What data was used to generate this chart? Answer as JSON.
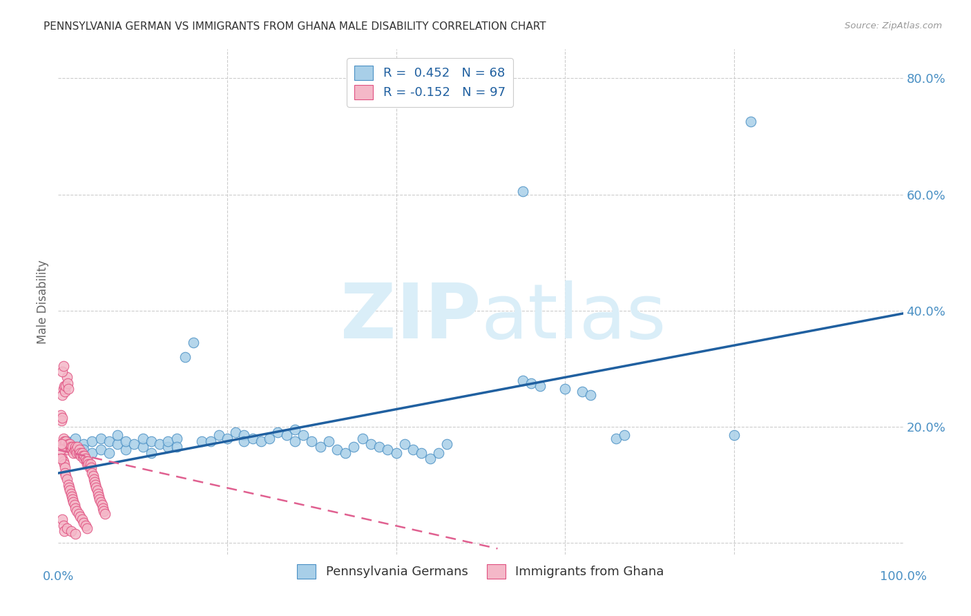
{
  "title": "PENNSYLVANIA GERMAN VS IMMIGRANTS FROM GHANA MALE DISABILITY CORRELATION CHART",
  "source": "Source: ZipAtlas.com",
  "ylabel": "Male Disability",
  "xlim": [
    0.0,
    1.0
  ],
  "ylim": [
    -0.02,
    0.85
  ],
  "y_ticks": [
    0.0,
    0.2,
    0.4,
    0.6,
    0.8
  ],
  "y_tick_labels": [
    "",
    "20.0%",
    "40.0%",
    "60.0%",
    "80.0%"
  ],
  "x_ticks": [
    0.0,
    0.2,
    0.4,
    0.6,
    0.8,
    1.0
  ],
  "legend1_label": "R =  0.452   N = 68",
  "legend2_label": "R = -0.152   N = 97",
  "legend_bottom_label1": "Pennsylvania Germans",
  "legend_bottom_label2": "Immigrants from Ghana",
  "blue_color": "#a8cfe8",
  "blue_edge_color": "#4a90c4",
  "pink_color": "#f4b8c8",
  "pink_edge_color": "#e05080",
  "blue_line_color": "#2060a0",
  "pink_line_color": "#e06090",
  "watermark_color": "#daeef8",
  "background_color": "#ffffff",
  "grid_color": "#cccccc",
  "title_color": "#333333",
  "right_label_color": "#4a90c4",
  "blue_scatter": [
    [
      0.01,
      0.175
    ],
    [
      0.02,
      0.165
    ],
    [
      0.02,
      0.18
    ],
    [
      0.03,
      0.17
    ],
    [
      0.03,
      0.16
    ],
    [
      0.04,
      0.155
    ],
    [
      0.04,
      0.175
    ],
    [
      0.05,
      0.16
    ],
    [
      0.05,
      0.18
    ],
    [
      0.06,
      0.155
    ],
    [
      0.06,
      0.175
    ],
    [
      0.07,
      0.17
    ],
    [
      0.07,
      0.185
    ],
    [
      0.08,
      0.16
    ],
    [
      0.08,
      0.175
    ],
    [
      0.09,
      0.17
    ],
    [
      0.1,
      0.165
    ],
    [
      0.1,
      0.18
    ],
    [
      0.11,
      0.175
    ],
    [
      0.11,
      0.155
    ],
    [
      0.12,
      0.17
    ],
    [
      0.13,
      0.165
    ],
    [
      0.13,
      0.175
    ],
    [
      0.14,
      0.18
    ],
    [
      0.14,
      0.165
    ],
    [
      0.15,
      0.32
    ],
    [
      0.16,
      0.345
    ],
    [
      0.17,
      0.175
    ],
    [
      0.18,
      0.175
    ],
    [
      0.19,
      0.185
    ],
    [
      0.2,
      0.18
    ],
    [
      0.21,
      0.19
    ],
    [
      0.22,
      0.185
    ],
    [
      0.22,
      0.175
    ],
    [
      0.23,
      0.18
    ],
    [
      0.24,
      0.175
    ],
    [
      0.25,
      0.18
    ],
    [
      0.26,
      0.19
    ],
    [
      0.27,
      0.185
    ],
    [
      0.28,
      0.175
    ],
    [
      0.28,
      0.195
    ],
    [
      0.29,
      0.185
    ],
    [
      0.3,
      0.175
    ],
    [
      0.31,
      0.165
    ],
    [
      0.32,
      0.175
    ],
    [
      0.33,
      0.16
    ],
    [
      0.34,
      0.155
    ],
    [
      0.35,
      0.165
    ],
    [
      0.36,
      0.18
    ],
    [
      0.37,
      0.17
    ],
    [
      0.38,
      0.165
    ],
    [
      0.39,
      0.16
    ],
    [
      0.4,
      0.155
    ],
    [
      0.41,
      0.17
    ],
    [
      0.42,
      0.16
    ],
    [
      0.43,
      0.155
    ],
    [
      0.44,
      0.145
    ],
    [
      0.45,
      0.155
    ],
    [
      0.46,
      0.17
    ],
    [
      0.55,
      0.28
    ],
    [
      0.56,
      0.275
    ],
    [
      0.57,
      0.27
    ],
    [
      0.6,
      0.265
    ],
    [
      0.62,
      0.26
    ],
    [
      0.63,
      0.255
    ],
    [
      0.66,
      0.18
    ],
    [
      0.67,
      0.185
    ],
    [
      0.8,
      0.185
    ],
    [
      0.55,
      0.605
    ],
    [
      0.82,
      0.725
    ]
  ],
  "pink_scatter": [
    [
      0.005,
      0.17
    ],
    [
      0.006,
      0.18
    ],
    [
      0.007,
      0.175
    ],
    [
      0.008,
      0.17
    ],
    [
      0.009,
      0.175
    ],
    [
      0.01,
      0.165
    ],
    [
      0.011,
      0.16
    ],
    [
      0.012,
      0.17
    ],
    [
      0.013,
      0.165
    ],
    [
      0.014,
      0.17
    ],
    [
      0.015,
      0.165
    ],
    [
      0.016,
      0.16
    ],
    [
      0.017,
      0.165
    ],
    [
      0.018,
      0.155
    ],
    [
      0.019,
      0.16
    ],
    [
      0.02,
      0.165
    ],
    [
      0.021,
      0.16
    ],
    [
      0.022,
      0.155
    ],
    [
      0.023,
      0.165
    ],
    [
      0.024,
      0.155
    ],
    [
      0.025,
      0.16
    ],
    [
      0.026,
      0.155
    ],
    [
      0.027,
      0.15
    ],
    [
      0.028,
      0.155
    ],
    [
      0.029,
      0.15
    ],
    [
      0.03,
      0.145
    ],
    [
      0.031,
      0.15
    ],
    [
      0.032,
      0.145
    ],
    [
      0.033,
      0.14
    ],
    [
      0.034,
      0.135
    ],
    [
      0.035,
      0.14
    ],
    [
      0.036,
      0.135
    ],
    [
      0.037,
      0.13
    ],
    [
      0.038,
      0.135
    ],
    [
      0.039,
      0.13
    ],
    [
      0.04,
      0.12
    ],
    [
      0.041,
      0.115
    ],
    [
      0.042,
      0.11
    ],
    [
      0.043,
      0.105
    ],
    [
      0.044,
      0.1
    ],
    [
      0.045,
      0.095
    ],
    [
      0.046,
      0.09
    ],
    [
      0.047,
      0.085
    ],
    [
      0.048,
      0.08
    ],
    [
      0.049,
      0.075
    ],
    [
      0.05,
      0.07
    ],
    [
      0.052,
      0.065
    ],
    [
      0.053,
      0.06
    ],
    [
      0.054,
      0.055
    ],
    [
      0.055,
      0.05
    ],
    [
      0.005,
      0.255
    ],
    [
      0.006,
      0.265
    ],
    [
      0.007,
      0.27
    ],
    [
      0.008,
      0.26
    ],
    [
      0.009,
      0.27
    ],
    [
      0.01,
      0.285
    ],
    [
      0.011,
      0.275
    ],
    [
      0.012,
      0.265
    ],
    [
      0.005,
      0.295
    ],
    [
      0.006,
      0.305
    ],
    [
      0.005,
      0.145
    ],
    [
      0.006,
      0.14
    ],
    [
      0.007,
      0.135
    ],
    [
      0.008,
      0.13
    ],
    [
      0.003,
      0.16
    ],
    [
      0.004,
      0.17
    ],
    [
      0.003,
      0.145
    ],
    [
      0.005,
      0.04
    ],
    [
      0.006,
      0.03
    ],
    [
      0.007,
      0.02
    ],
    [
      0.01,
      0.025
    ],
    [
      0.015,
      0.02
    ],
    [
      0.02,
      0.015
    ],
    [
      0.003,
      0.22
    ],
    [
      0.004,
      0.21
    ],
    [
      0.005,
      0.215
    ],
    [
      0.008,
      0.12
    ],
    [
      0.009,
      0.115
    ],
    [
      0.01,
      0.11
    ],
    [
      0.012,
      0.1
    ],
    [
      0.013,
      0.095
    ],
    [
      0.014,
      0.09
    ],
    [
      0.015,
      0.085
    ],
    [
      0.016,
      0.08
    ],
    [
      0.017,
      0.075
    ],
    [
      0.018,
      0.07
    ],
    [
      0.019,
      0.065
    ],
    [
      0.02,
      0.06
    ],
    [
      0.022,
      0.055
    ],
    [
      0.024,
      0.05
    ],
    [
      0.026,
      0.045
    ],
    [
      0.028,
      0.04
    ],
    [
      0.03,
      0.035
    ],
    [
      0.032,
      0.03
    ],
    [
      0.034,
      0.025
    ]
  ],
  "blue_line_x": [
    0.0,
    1.0
  ],
  "blue_line_y": [
    0.12,
    0.395
  ],
  "pink_line_x": [
    0.0,
    0.52
  ],
  "pink_line_y": [
    0.16,
    -0.01
  ]
}
